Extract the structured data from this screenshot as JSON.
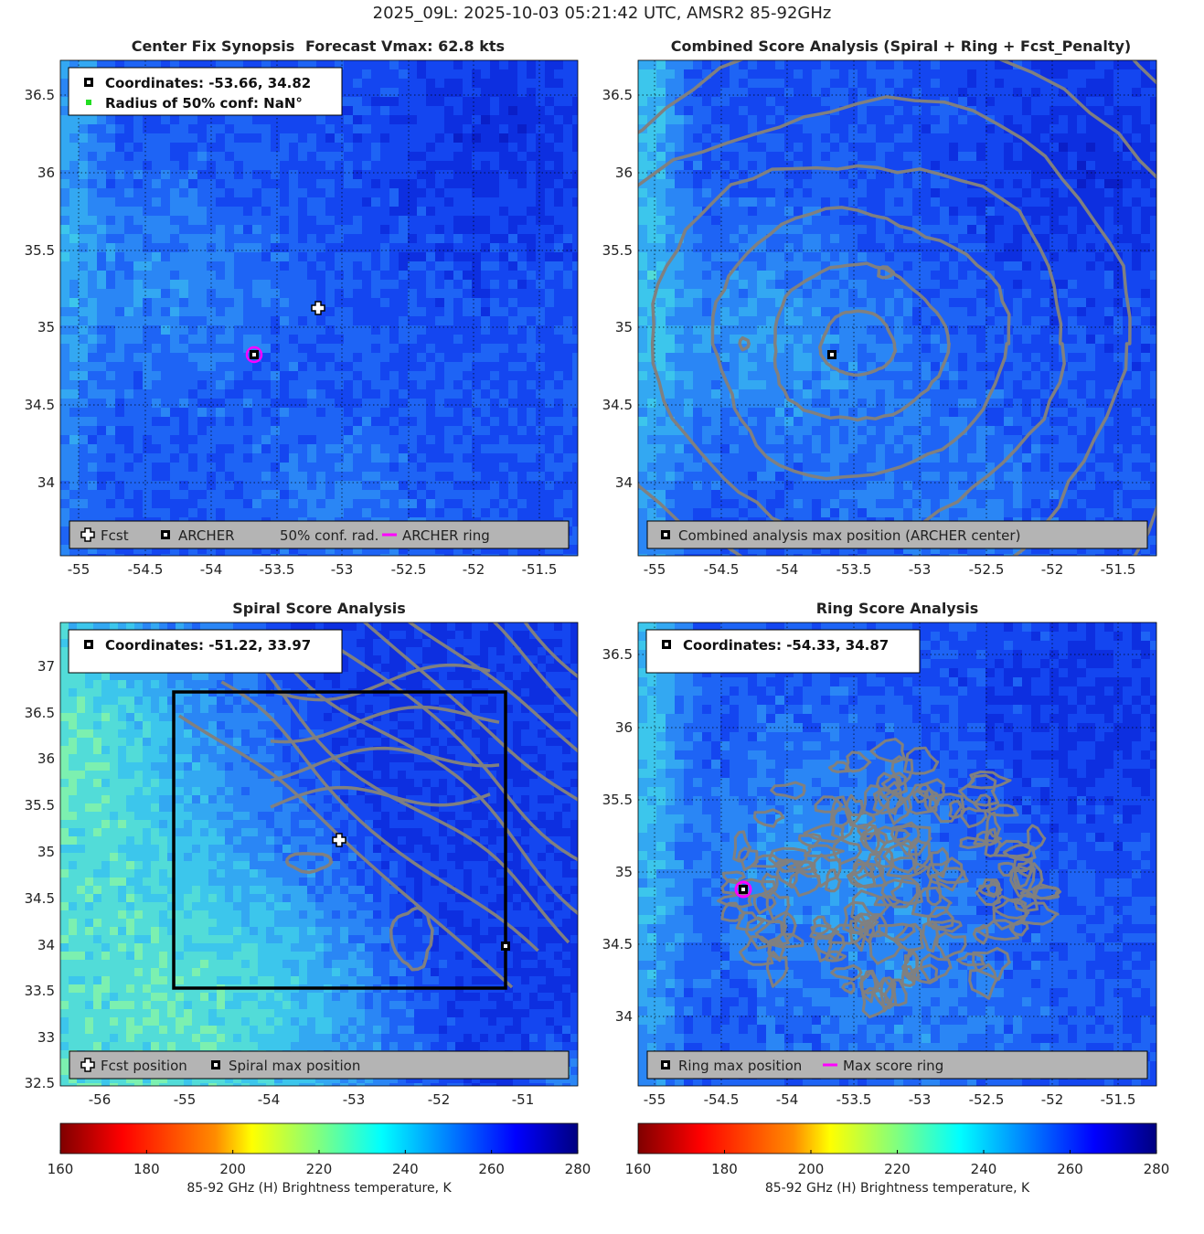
{
  "figure": {
    "title": "2025_09L: 2025-10-03 05:21:42 UTC, AMSR2 85-92GHz"
  },
  "palette": {
    "background_levels": [
      "#0a1fc8",
      "#0d2fe0",
      "#1446f0",
      "#1e64f5",
      "#2a86f5",
      "#33a8f2",
      "#3cc6ec",
      "#52dcd8",
      "#7cf0b0",
      "#b6f57a"
    ],
    "contour": "#808080",
    "legend_bg": "#b4b4b4",
    "ring": "#ff00ff",
    "frame": "#000000"
  },
  "panels": [
    {
      "id": "synopsis",
      "title_left": "Center Fix Synopsis",
      "title_right": "Forecast Vmax: 62.8 kts",
      "info_lines": [
        {
          "icon": "square-marker",
          "text": "Coordinates: -53.66, 34.82"
        },
        {
          "icon": "green-dot",
          "text": "Radius of 50% conf: NaN°"
        }
      ],
      "legend": [
        {
          "icon": "plus-marker",
          "text": "Fcst"
        },
        {
          "icon": "square-marker",
          "text": "ARCHER"
        },
        {
          "icon": "none",
          "text": "50% conf. rad."
        },
        {
          "icon": "magenta-line",
          "text": "ARCHER ring"
        }
      ],
      "x_ticks": [
        "-55",
        "-54.5",
        "-54",
        "-53.5",
        "-53",
        "-52.5",
        "-52",
        "-51.5"
      ],
      "y_ticks": [
        "36.5",
        "36",
        "35.5",
        "35",
        "34.5",
        "34"
      ]
    },
    {
      "id": "combined",
      "title": "Combined Score Analysis (Spiral + Ring + Fcst_Penalty)",
      "legend": [
        {
          "icon": "square-marker",
          "text": "Combined analysis max position (ARCHER center)"
        }
      ],
      "x_ticks": [
        "-55",
        "-54.5",
        "-54",
        "-53.5",
        "-53",
        "-52.5",
        "-52",
        "-51.5"
      ],
      "y_ticks": [
        "36.5",
        "36",
        "35.5",
        "35",
        "34.5",
        "34"
      ]
    },
    {
      "id": "spiral",
      "title": "Spiral Score Analysis",
      "info_lines": [
        {
          "icon": "square-marker",
          "text": "Coordinates: -51.22, 33.97"
        }
      ],
      "legend": [
        {
          "icon": "plus-marker",
          "text": "Fcst position"
        },
        {
          "icon": "square-marker",
          "text": "Spiral max position"
        }
      ],
      "x_ticks": [
        "-56",
        "-55",
        "-54",
        "-53",
        "-52",
        "-51"
      ],
      "y_ticks": [
        "37",
        "36.5",
        "36",
        "35.5",
        "35",
        "34.5",
        "34",
        "33.5",
        "33",
        "32.5"
      ]
    },
    {
      "id": "ring",
      "title": "Ring Score Analysis",
      "info_lines": [
        {
          "icon": "square-marker",
          "text": "Coordinates: -54.33, 34.87"
        }
      ],
      "legend": [
        {
          "icon": "square-marker",
          "text": "Ring max position"
        },
        {
          "icon": "magenta-line",
          "text": "Max score ring"
        }
      ],
      "x_ticks": [
        "-55",
        "-54.5",
        "-54",
        "-53.5",
        "-53",
        "-52.5",
        "-52",
        "-51.5"
      ],
      "y_ticks": [
        "36.5",
        "36",
        "35.5",
        "35",
        "34.5",
        "34"
      ]
    }
  ],
  "colorbars": [
    {
      "id": "left",
      "ticks": [
        "160",
        "180",
        "200",
        "220",
        "240",
        "260",
        "280"
      ],
      "label": "85-92 GHz (H) Brightness temperature, K"
    },
    {
      "id": "right",
      "ticks": [
        "160",
        "180",
        "200",
        "220",
        "240",
        "260",
        "280"
      ],
      "label": "85-92 GHz (H) Brightness temperature, K"
    }
  ],
  "chart_data": [
    {
      "type": "heatmap",
      "title": "Center Fix Synopsis     Forecast Vmax: 62.8 kts",
      "x_range": [
        -55.3,
        -51.2
      ],
      "y_range": [
        33.55,
        36.7
      ],
      "colorbar_range": [
        160,
        280
      ],
      "colorbar_label": "85-92 GHz (H) Brightness temperature, K",
      "markers": [
        {
          "name": "Fcst",
          "lon": -53.18,
          "lat": 35.12
        },
        {
          "name": "ARCHER",
          "lon": -53.66,
          "lat": 34.82
        }
      ],
      "grid": true
    },
    {
      "type": "heatmap",
      "title": "Combined Score Analysis (Spiral + Ring + Fcst_Penalty)",
      "x_range": [
        -55.3,
        -51.2
      ],
      "y_range": [
        33.55,
        36.7
      ],
      "colorbar_range": [
        160,
        280
      ],
      "markers": [
        {
          "name": "Combined analysis max position (ARCHER center)",
          "lon": -53.66,
          "lat": 34.82
        }
      ],
      "contours": true,
      "grid": true
    },
    {
      "type": "heatmap",
      "title": "Spiral Score Analysis",
      "x_range": [
        -56.5,
        -50.4
      ],
      "y_range": [
        32.5,
        37.5
      ],
      "colorbar_range": [
        160,
        280
      ],
      "markers": [
        {
          "name": "Fcst position",
          "lon": -53.18,
          "lat": 35.12
        },
        {
          "name": "Spiral max position",
          "lon": -51.22,
          "lat": 33.97
        }
      ],
      "search_box": {
        "lon": [
          -55.1,
          -51.2
        ],
        "lat": [
          33.52,
          36.73
        ]
      },
      "contours": true,
      "grid": false
    },
    {
      "type": "heatmap",
      "title": "Ring Score Analysis",
      "x_range": [
        -55.3,
        -51.2
      ],
      "y_range": [
        33.55,
        36.75
      ],
      "colorbar_range": [
        160,
        280
      ],
      "markers": [
        {
          "name": "Ring max position",
          "lon": -54.33,
          "lat": 34.87
        }
      ],
      "contours": true,
      "grid": true
    }
  ]
}
